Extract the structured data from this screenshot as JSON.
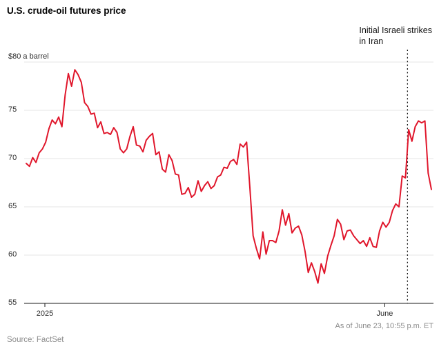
{
  "page": {
    "title": "U.S. crude-oil futures price"
  },
  "annotation": {
    "line1": "Initial Israeli strikes",
    "line2": "in Iran"
  },
  "y_axis": {
    "top_label": "$80 a barrel"
  },
  "footer": {
    "source": "Source: FactSet",
    "as_of": "As of June 23, 10:55 p.m. ET"
  },
  "chart_data": {
    "type": "line",
    "title": "U.S. crude-oil futures price",
    "ylabel": "$ a barrel",
    "ylim": [
      55,
      80
    ],
    "yticks": [
      55,
      60,
      65,
      70,
      75,
      80
    ],
    "grid": true,
    "legend": "none",
    "x_ticks": [
      {
        "label": "2025",
        "f": 0.046
      },
      {
        "label": "June",
        "f": 0.885
      }
    ],
    "event_line": {
      "label": "Initial Israeli strikes in Iran",
      "f": 0.941
    },
    "series": [
      {
        "name": "U.S. crude-oil futures price",
        "color": "#e0162b",
        "values": [
          69.5,
          69.2,
          70.1,
          69.6,
          70.6,
          71.0,
          71.7,
          73.1,
          74.0,
          73.6,
          74.3,
          73.3,
          76.6,
          78.8,
          77.5,
          79.2,
          78.7,
          77.9,
          75.8,
          75.4,
          74.6,
          74.7,
          73.2,
          73.8,
          72.6,
          72.7,
          72.5,
          73.2,
          72.7,
          71.0,
          70.6,
          71.0,
          72.3,
          73.3,
          71.4,
          71.3,
          70.7,
          71.9,
          72.3,
          72.6,
          70.4,
          70.7,
          68.9,
          68.6,
          70.4,
          69.8,
          68.4,
          68.3,
          66.3,
          66.4,
          67.0,
          66.0,
          66.3,
          67.7,
          66.6,
          67.2,
          67.6,
          66.9,
          67.2,
          68.1,
          68.3,
          69.1,
          69.0,
          69.7,
          69.9,
          69.4,
          71.5,
          71.2,
          71.7,
          67.0,
          62.0,
          60.7,
          59.6,
          62.4,
          60.1,
          61.5,
          61.5,
          61.3,
          62.5,
          64.7,
          63.1,
          64.3,
          62.3,
          62.8,
          63.0,
          62.1,
          60.4,
          58.2,
          59.2,
          58.3,
          57.1,
          59.1,
          58.1,
          59.9,
          61.0,
          62.0,
          63.7,
          63.2,
          61.6,
          62.5,
          62.6,
          62.0,
          61.6,
          61.2,
          61.5,
          60.9,
          61.8,
          60.9,
          60.8,
          62.5,
          63.4,
          62.9,
          63.4,
          64.6,
          65.3,
          65.0,
          68.2,
          68.0,
          73.0,
          71.8,
          73.3,
          73.9,
          73.7,
          73.9,
          68.5,
          66.8
        ]
      }
    ],
    "source": "FactSet",
    "as_of": "As of June 23, 10:55 p.m. ET"
  }
}
